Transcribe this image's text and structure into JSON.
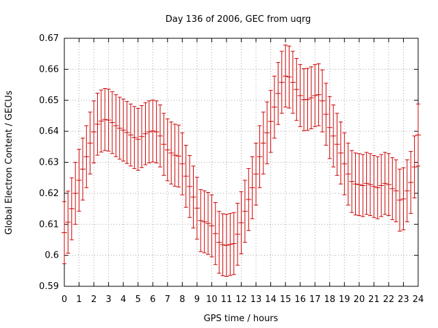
{
  "chart_data": {
    "type": "scatter",
    "title": "Day 136 of 2006, GEC from uqrg",
    "xlabel": "GPS time / hours",
    "ylabel": "Global Electron Content / GECUs",
    "xlim": [
      0,
      24
    ],
    "ylim": [
      0.59,
      0.67
    ],
    "x_ticks": [
      0,
      1,
      2,
      3,
      4,
      5,
      6,
      7,
      8,
      9,
      10,
      11,
      12,
      13,
      14,
      15,
      16,
      17,
      18,
      19,
      20,
      21,
      22,
      23,
      24
    ],
    "y_ticks": [
      0.59,
      0.6,
      0.61,
      0.62,
      0.63,
      0.64,
      0.65,
      0.66,
      0.67
    ],
    "x_tick_labels": [
      "0",
      "1",
      "2",
      "3",
      "4",
      "5",
      "6",
      "7",
      "8",
      "9",
      "10",
      "11",
      "12",
      "13",
      "14",
      "15",
      "16",
      "17",
      "18",
      "19",
      "20",
      "21",
      "22",
      "23",
      "24"
    ],
    "y_tick_labels": [
      "0.59",
      "0.6",
      "0.61",
      "0.62",
      "0.63",
      "0.64",
      "0.65",
      "0.66",
      "0.67"
    ],
    "grid": true,
    "error_bars": true,
    "error_half_width": 0.01,
    "series_color": "#cc0000",
    "series": [
      {
        "x": [
          0,
          0.25,
          0.5,
          0.75,
          1,
          1.25,
          1.5,
          1.75,
          2,
          2.25,
          2.5,
          2.75,
          3,
          3.25,
          3.5,
          3.75,
          4,
          4.25,
          4.5,
          4.75,
          5,
          5.25,
          5.5,
          5.75,
          6,
          6.25,
          6.5,
          6.75,
          7,
          7.25,
          7.5,
          7.75,
          8,
          8.25,
          8.5,
          8.75,
          9,
          9.25,
          9.5,
          9.75,
          10,
          10.25,
          10.5,
          10.75,
          11,
          11.25,
          11.5,
          11.75,
          12,
          12.25,
          12.5,
          12.75,
          13,
          13.25,
          13.5,
          13.75,
          14,
          14.25,
          14.5,
          14.75,
          15,
          15.25,
          15.5,
          15.75,
          16,
          16.25,
          16.5,
          16.75,
          17,
          17.25,
          17.5,
          17.75,
          18,
          18.25,
          18.5,
          18.75,
          19,
          19.25,
          19.5,
          19.75,
          20,
          20.25,
          20.5,
          20.75,
          21,
          21.25,
          21.5,
          21.75,
          22,
          22.25,
          22.5,
          22.75,
          23,
          23.25,
          23.5,
          23.75,
          24
        ],
        "y": [
          0.6073,
          0.6107,
          0.615,
          0.62,
          0.6242,
          0.6278,
          0.6318,
          0.6362,
          0.6398,
          0.6423,
          0.6433,
          0.6438,
          0.6436,
          0.6428,
          0.6418,
          0.641,
          0.6404,
          0.6396,
          0.6388,
          0.638,
          0.6374,
          0.6383,
          0.6392,
          0.6398,
          0.6401,
          0.6398,
          0.6385,
          0.6358,
          0.634,
          0.633,
          0.6323,
          0.632,
          0.6295,
          0.6255,
          0.6222,
          0.6188,
          0.6152,
          0.6112,
          0.6108,
          0.6103,
          0.6095,
          0.607,
          0.6042,
          0.6034,
          0.6032,
          0.6035,
          0.6038,
          0.6068,
          0.6105,
          0.6142,
          0.618,
          0.6218,
          0.6262,
          0.6318,
          0.6362,
          0.6395,
          0.6432,
          0.6478,
          0.6522,
          0.6558,
          0.6578,
          0.6575,
          0.6558,
          0.6535,
          0.6515,
          0.6502,
          0.6503,
          0.6508,
          0.6515,
          0.6518,
          0.6498,
          0.6455,
          0.6412,
          0.6385,
          0.6358,
          0.633,
          0.6295,
          0.6262,
          0.6238,
          0.623,
          0.6228,
          0.6225,
          0.6232,
          0.6228,
          0.6222,
          0.6218,
          0.6225,
          0.6232,
          0.6228,
          0.6215,
          0.6208,
          0.6178,
          0.6182,
          0.6208,
          0.6235,
          0.6285,
          0.6388
        ]
      }
    ]
  }
}
